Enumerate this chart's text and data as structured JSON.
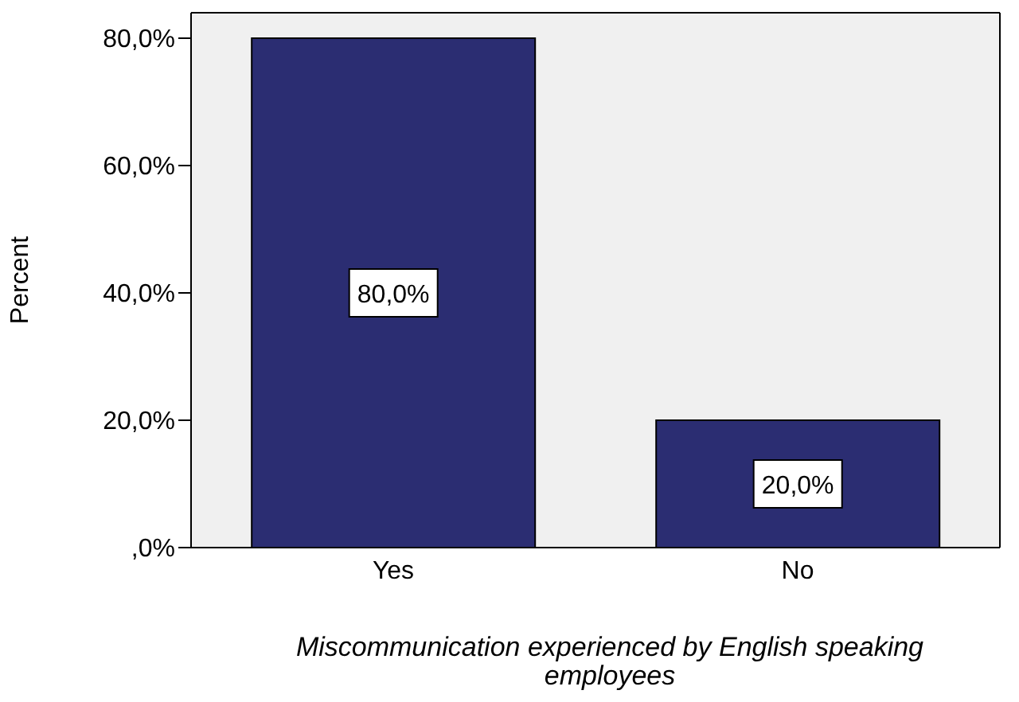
{
  "chart_data": {
    "type": "bar",
    "categories": [
      "Yes",
      "No"
    ],
    "values": [
      80,
      20
    ],
    "color": "#2b2d72",
    "value_labels": [
      "80,0%",
      "20,0%"
    ],
    "xlabel": "Miscommunication experienced by English speaking employees",
    "ylabel": "Percent",
    "ylim": [
      0,
      84
    ],
    "yticks": [
      {
        "value": 0,
        "label": ",0%"
      },
      {
        "value": 20,
        "label": "20,0%"
      },
      {
        "value": 40,
        "label": "40,0%"
      },
      {
        "value": 60,
        "label": "60,0%"
      },
      {
        "value": 80,
        "label": "80,0%"
      }
    ],
    "legend": false
  }
}
